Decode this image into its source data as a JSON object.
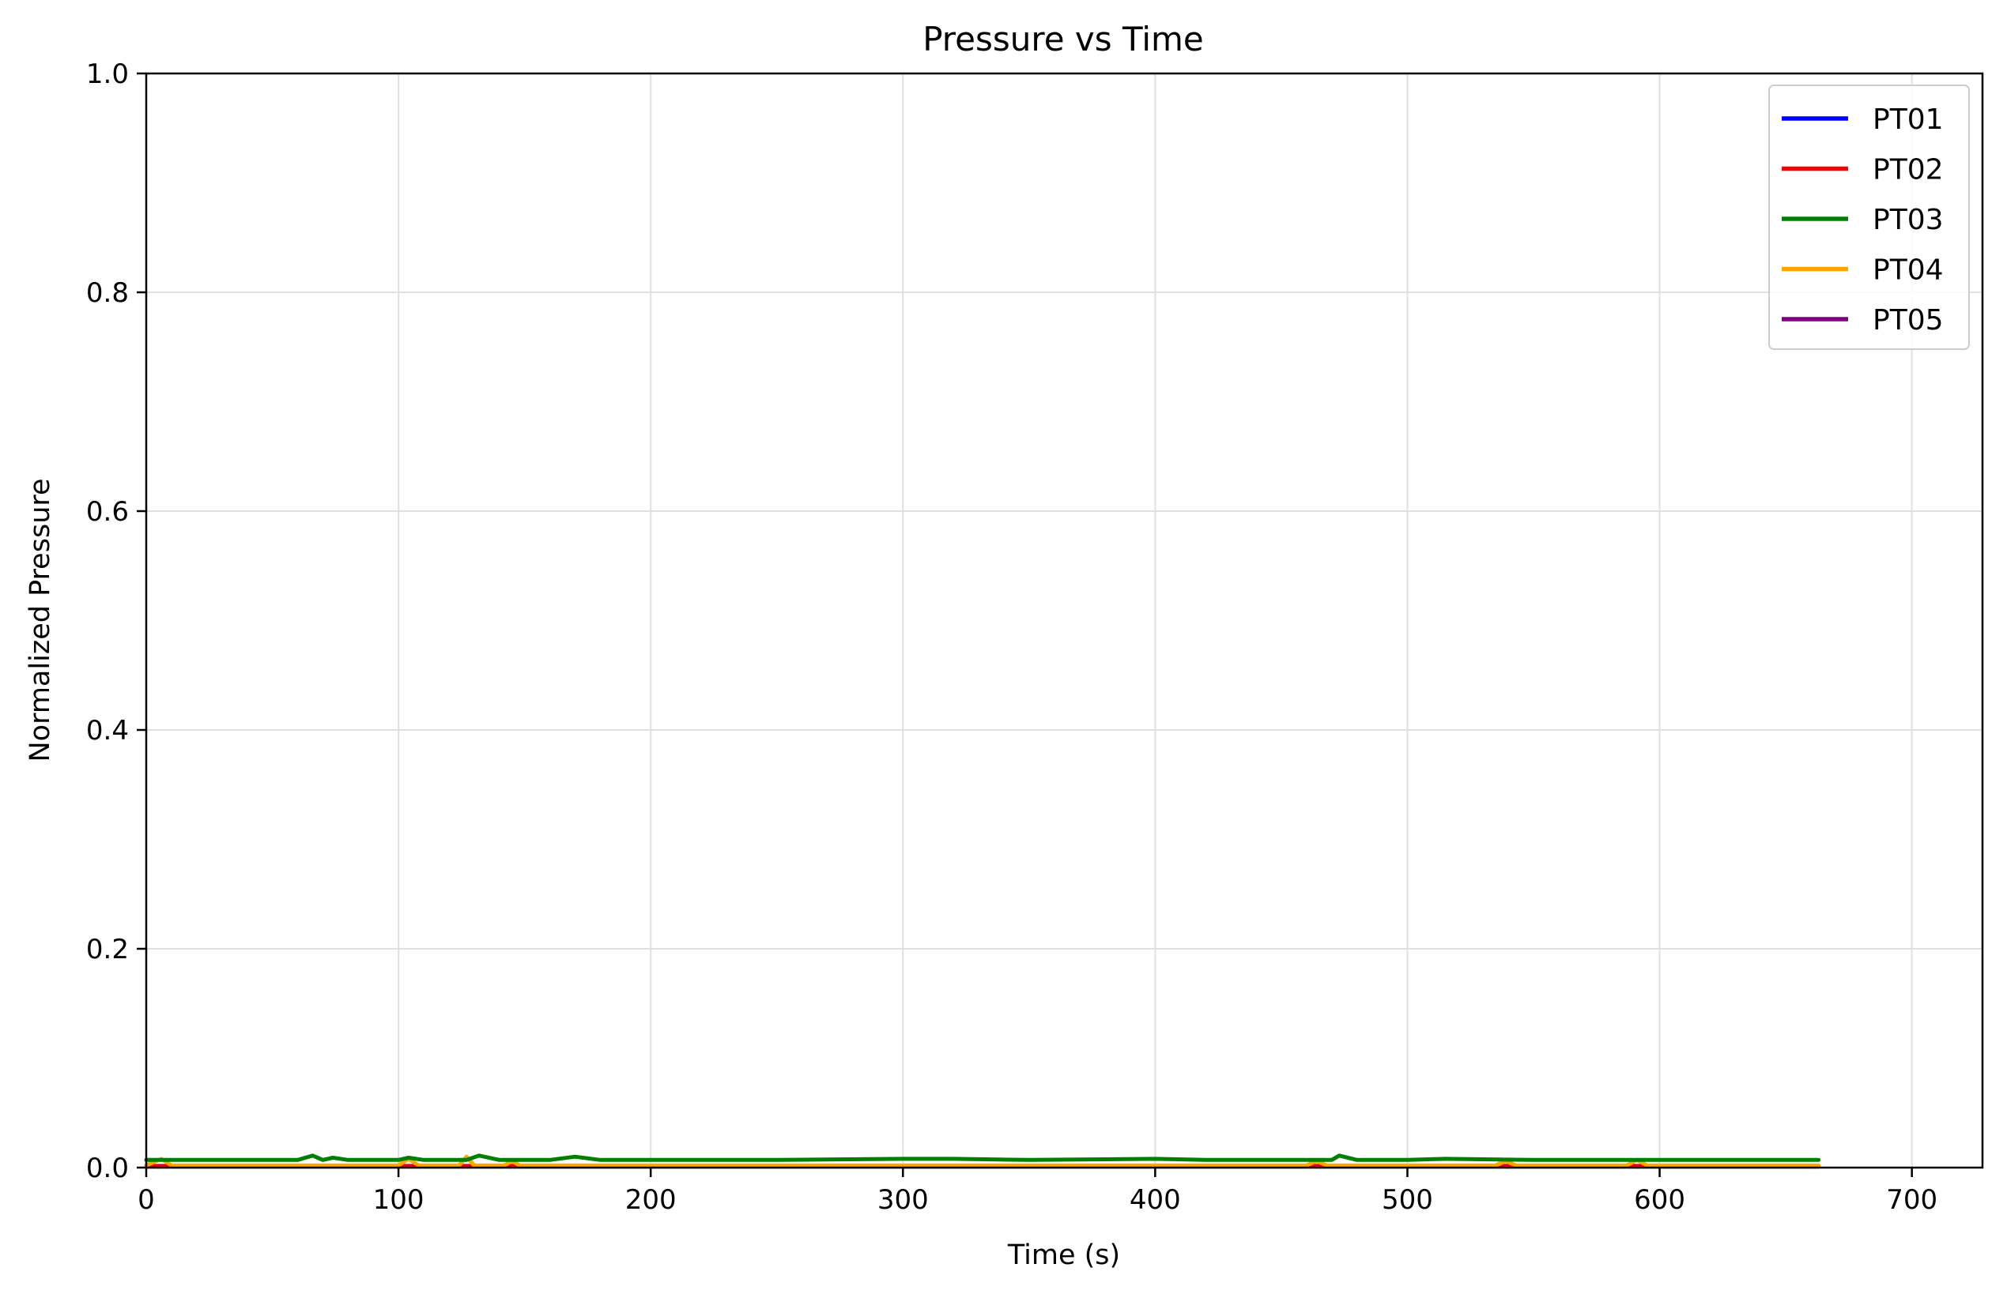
{
  "chart_data": {
    "type": "line",
    "title": "Pressure vs Time",
    "xlabel": "Time (s)",
    "ylabel": "Normalized Pressure",
    "xlim": [
      0,
      728
    ],
    "ylim": [
      0,
      1.0
    ],
    "xticks": [
      0,
      100,
      200,
      300,
      400,
      500,
      600,
      700
    ],
    "yticks": [
      0.0,
      0.2,
      0.4,
      0.6,
      0.8,
      1.0
    ],
    "xtick_labels": [
      "0",
      "100",
      "200",
      "300",
      "400",
      "500",
      "600",
      "700"
    ],
    "ytick_labels": [
      "0.0",
      "0.2",
      "0.4",
      "0.6",
      "0.8",
      "1.0"
    ],
    "grid": true,
    "legend_position": "top-right",
    "series": [
      {
        "name": "PT01",
        "color": "#0000ff",
        "x": [
          0,
          663
        ],
        "y": [
          0.001,
          0.001
        ]
      },
      {
        "name": "PT02",
        "color": "#ff0000",
        "x": [
          0,
          663
        ],
        "y": [
          0.001,
          0.001
        ]
      },
      {
        "name": "PT03",
        "color": "#008000",
        "x": [
          0,
          20,
          40,
          60,
          66,
          70,
          74,
          80,
          100,
          104,
          110,
          127,
          132,
          140,
          160,
          170,
          180,
          200,
          250,
          300,
          320,
          350,
          400,
          420,
          450,
          470,
          473,
          480,
          500,
          515,
          550,
          600,
          640,
          663
        ],
        "y": [
          0.007,
          0.007,
          0.007,
          0.007,
          0.011,
          0.007,
          0.009,
          0.007,
          0.007,
          0.009,
          0.007,
          0.007,
          0.011,
          0.007,
          0.007,
          0.01,
          0.007,
          0.007,
          0.007,
          0.008,
          0.008,
          0.007,
          0.008,
          0.007,
          0.007,
          0.007,
          0.011,
          0.007,
          0.007,
          0.008,
          0.007,
          0.007,
          0.007,
          0.007
        ]
      },
      {
        "name": "PT04",
        "color": "#ffa500",
        "x": [
          0,
          6,
          10,
          100,
          104,
          108,
          124,
          127,
          130,
          142,
          145,
          148,
          460,
          464,
          468,
          535,
          539,
          543,
          587,
          591,
          595,
          663
        ],
        "y": [
          0.002,
          0.008,
          0.002,
          0.002,
          0.008,
          0.002,
          0.002,
          0.01,
          0.002,
          0.002,
          0.006,
          0.002,
          0.002,
          0.006,
          0.002,
          0.002,
          0.006,
          0.002,
          0.002,
          0.007,
          0.002,
          0.002
        ]
      },
      {
        "name": "PT05",
        "color": "#800080",
        "x": [
          0,
          663
        ],
        "y": [
          0.0015,
          0.0015
        ]
      }
    ]
  }
}
